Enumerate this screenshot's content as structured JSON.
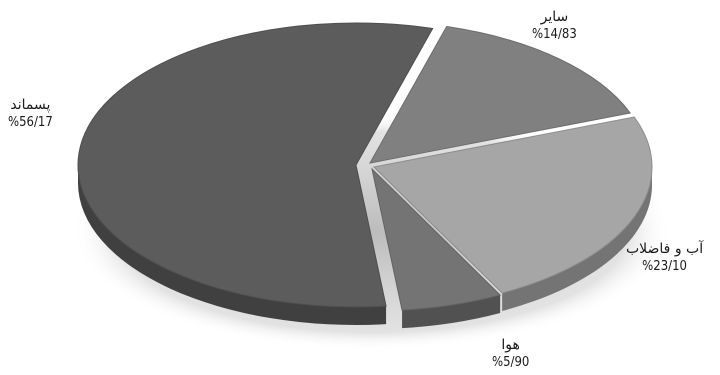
{
  "chart_data": {
    "type": "pie",
    "title": "",
    "slices": [
      {
        "label": "پسماند",
        "value": 56.17,
        "value_text": "%56/17",
        "color": "#5c5c5c"
      },
      {
        "label": "سایر",
        "value": 14.83,
        "value_text": "%14/83",
        "color": "#808080"
      },
      {
        "label": "آب و فاضلاب",
        "value": 23.1,
        "value_text": "%23/10",
        "color": "#a6a6a6"
      },
      {
        "label": "هوا",
        "value": 5.9,
        "value_text": "%5/90",
        "color": "#747474"
      }
    ],
    "style": "3d-exploded",
    "legend": "none"
  }
}
